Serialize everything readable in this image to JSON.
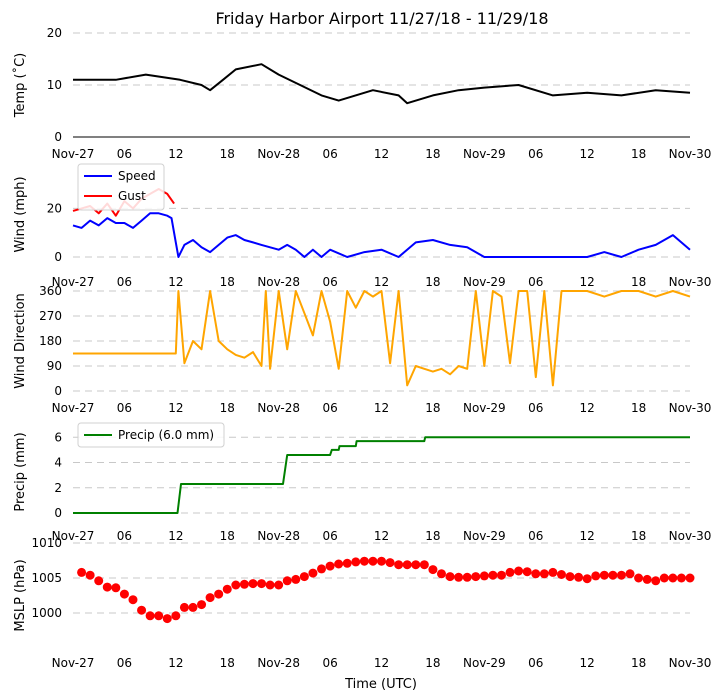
{
  "chart_data": {
    "type": "line",
    "title": "Friday Harbor Airport 11/27/18 - 11/29/18",
    "xlabel": "Time (UTC)",
    "x_ticks": [
      "Nov-27",
      "06",
      "12",
      "18",
      "Nov-28",
      "06",
      "12",
      "18",
      "Nov-29",
      "06",
      "12",
      "18",
      "Nov-30"
    ],
    "x_range_hours": [
      0,
      72
    ],
    "grid": "horizontal dashed",
    "panels": [
      {
        "name": "temperature",
        "ylabel": "Temp ($^\\circ$C)",
        "ylabel_display": "Temp (˚C)",
        "ylim": [
          0,
          20
        ],
        "yticks": [
          "0",
          "10",
          "20"
        ],
        "series": [
          {
            "color": "#000000",
            "x": [
              0,
              5,
              8.5,
              12.5,
              15,
              16,
              17.5,
              19,
              22,
              24,
              26.5,
              29,
              31,
              35,
              38,
              39,
              42,
              45,
              48,
              52,
              56,
              60,
              64,
              68,
              72
            ],
            "y": [
              11,
              11,
              12,
              11,
              10,
              9,
              11,
              13,
              14,
              12,
              10,
              8,
              7,
              9,
              8,
              6.5,
              8,
              9,
              9.5,
              10,
              8,
              8.5,
              8,
              9,
              8.5
            ]
          }
        ]
      },
      {
        "name": "wind",
        "ylabel": "Wind (mph)",
        "ylim": [
          0,
          35
        ],
        "yticks": [
          "0",
          "20"
        ],
        "legend": [
          "Speed",
          "Gust"
        ],
        "series": [
          {
            "name": "Speed",
            "color": "#0000ff",
            "x": [
              0,
              1,
              2,
              3,
              4,
              5,
              6,
              7,
              8,
              9,
              10,
              11,
              11.5,
              12,
              12.3,
              13,
              14,
              15,
              16,
              17,
              18,
              19,
              20,
              21,
              22,
              23,
              24,
              25,
              26,
              27,
              28,
              29,
              30,
              32,
              34,
              36,
              38,
              40,
              42,
              44,
              46,
              48,
              50,
              52,
              54,
              56,
              58,
              60,
              62,
              64,
              66,
              68,
              70,
              72
            ],
            "y": [
              13,
              12,
              15,
              13,
              16,
              14,
              14,
              12,
              15,
              18,
              18,
              17,
              16,
              6,
              0,
              5,
              7,
              4,
              2,
              5,
              8,
              9,
              7,
              6,
              5,
              4,
              3,
              5,
              3,
              0,
              3,
              0,
              3,
              0,
              2,
              3,
              0,
              6,
              7,
              5,
              4,
              0,
              0,
              0,
              0,
              0,
              0,
              0,
              2,
              0,
              3,
              5,
              9,
              3
            ]
          },
          {
            "name": "Gust",
            "color": "#ff0000",
            "x": [
              0,
              1,
              2,
              3,
              4,
              5,
              6,
              7,
              8,
              9,
              10,
              11,
              11.8
            ],
            "y": [
              19,
              20,
              21,
              18,
              22,
              17,
              23,
              20,
              24,
              26,
              28,
              26,
              22
            ]
          }
        ]
      },
      {
        "name": "direction",
        "ylabel": "Wind Direction",
        "ylim": [
          0,
          360
        ],
        "yticks": [
          "0",
          "90",
          "180",
          "270",
          "360"
        ],
        "series": [
          {
            "color": "#ffa500",
            "x": [
              0,
              12,
              12.3,
              13,
              14,
              15,
              16,
              17,
              18,
              19,
              20,
              21,
              22,
              22.5,
              23,
              24,
              25,
              26,
              27,
              28,
              29,
              30,
              31,
              32,
              33,
              34,
              35,
              36,
              37,
              38,
              39,
              40,
              41,
              42,
              43,
              44,
              45,
              46,
              47,
              48,
              49,
              50,
              51,
              52,
              53,
              54,
              55,
              56,
              57,
              58,
              60,
              62,
              64,
              66,
              68,
              70,
              72
            ],
            "y": [
              135,
              135,
              360,
              100,
              180,
              150,
              360,
              180,
              150,
              130,
              120,
              140,
              90,
              360,
              80,
              360,
              150,
              360,
              280,
              200,
              360,
              250,
              80,
              360,
              300,
              360,
              340,
              360,
              100,
              360,
              20,
              90,
              80,
              70,
              80,
              60,
              90,
              80,
              360,
              90,
              360,
              340,
              100,
              360,
              360,
              50,
              360,
              20,
              360,
              360,
              360,
              340,
              360,
              360,
              340,
              360,
              340
            ]
          }
        ]
      },
      {
        "name": "precip",
        "ylabel": "Precip (mm)",
        "ylim": [
          0,
          6.5
        ],
        "yticks": [
          "0",
          "2",
          "4",
          "6"
        ],
        "legend": [
          "Precip (6.0 mm)"
        ],
        "series": [
          {
            "name": "Precip (6.0 mm)",
            "color": "#008000",
            "x": [
              0,
              12.2,
              12.6,
              24.5,
              25,
              30,
              30.2,
              31,
              31.1,
              33,
              33.1,
              41,
              41.1,
              72
            ],
            "y": [
              0,
              0,
              2.3,
              2.3,
              4.6,
              4.6,
              5.0,
              5.0,
              5.3,
              5.3,
              5.7,
              5.7,
              6.0,
              6.0
            ]
          }
        ]
      },
      {
        "name": "mslp",
        "ylabel": "MSLP (hPa)",
        "ylim": [
          995,
          1010
        ],
        "yticks": [
          "1000",
          "1005",
          "1010"
        ],
        "series": [
          {
            "color": "#ff0000",
            "marker": "circle",
            "x": [
              1,
              2,
              3,
              4,
              5,
              6,
              7,
              8,
              9,
              10,
              11,
              12,
              13,
              14,
              15,
              16,
              17,
              18,
              19,
              20,
              21,
              22,
              23,
              24,
              25,
              26,
              27,
              28,
              29,
              30,
              31,
              32,
              33,
              34,
              35,
              36,
              37,
              38,
              39,
              40,
              41,
              42,
              43,
              44,
              45,
              46,
              47,
              48,
              49,
              50,
              51,
              52,
              53,
              54,
              55,
              56,
              57,
              58,
              59,
              60,
              61,
              62,
              63,
              64,
              65,
              66,
              67,
              68,
              69,
              70,
              71,
              72
            ],
            "y": [
              1005.8,
              1005.4,
              1004.6,
              1003.7,
              1003.6,
              1002.7,
              1001.9,
              1000.4,
              999.6,
              999.6,
              999.2,
              999.6,
              1000.8,
              1000.8,
              1001.2,
              1002.2,
              1002.7,
              1003.4,
              1004.0,
              1004.1,
              1004.2,
              1004.2,
              1004.0,
              1004.0,
              1004.6,
              1004.8,
              1005.2,
              1005.7,
              1006.3,
              1006.7,
              1007.0,
              1007.1,
              1007.3,
              1007.4,
              1007.4,
              1007.4,
              1007.2,
              1006.9,
              1006.9,
              1006.9,
              1006.9,
              1006.2,
              1005.6,
              1005.2,
              1005.1,
              1005.1,
              1005.2,
              1005.3,
              1005.4,
              1005.4,
              1005.8,
              1006.0,
              1005.9,
              1005.6,
              1005.6,
              1005.8,
              1005.5,
              1005.2,
              1005.1,
              1004.9,
              1005.3,
              1005.4,
              1005.4,
              1005.4,
              1005.6,
              1005.0,
              1004.8,
              1004.6,
              1005.0,
              1005.0,
              1005.0,
              1005.0
            ]
          }
        ]
      }
    ]
  }
}
